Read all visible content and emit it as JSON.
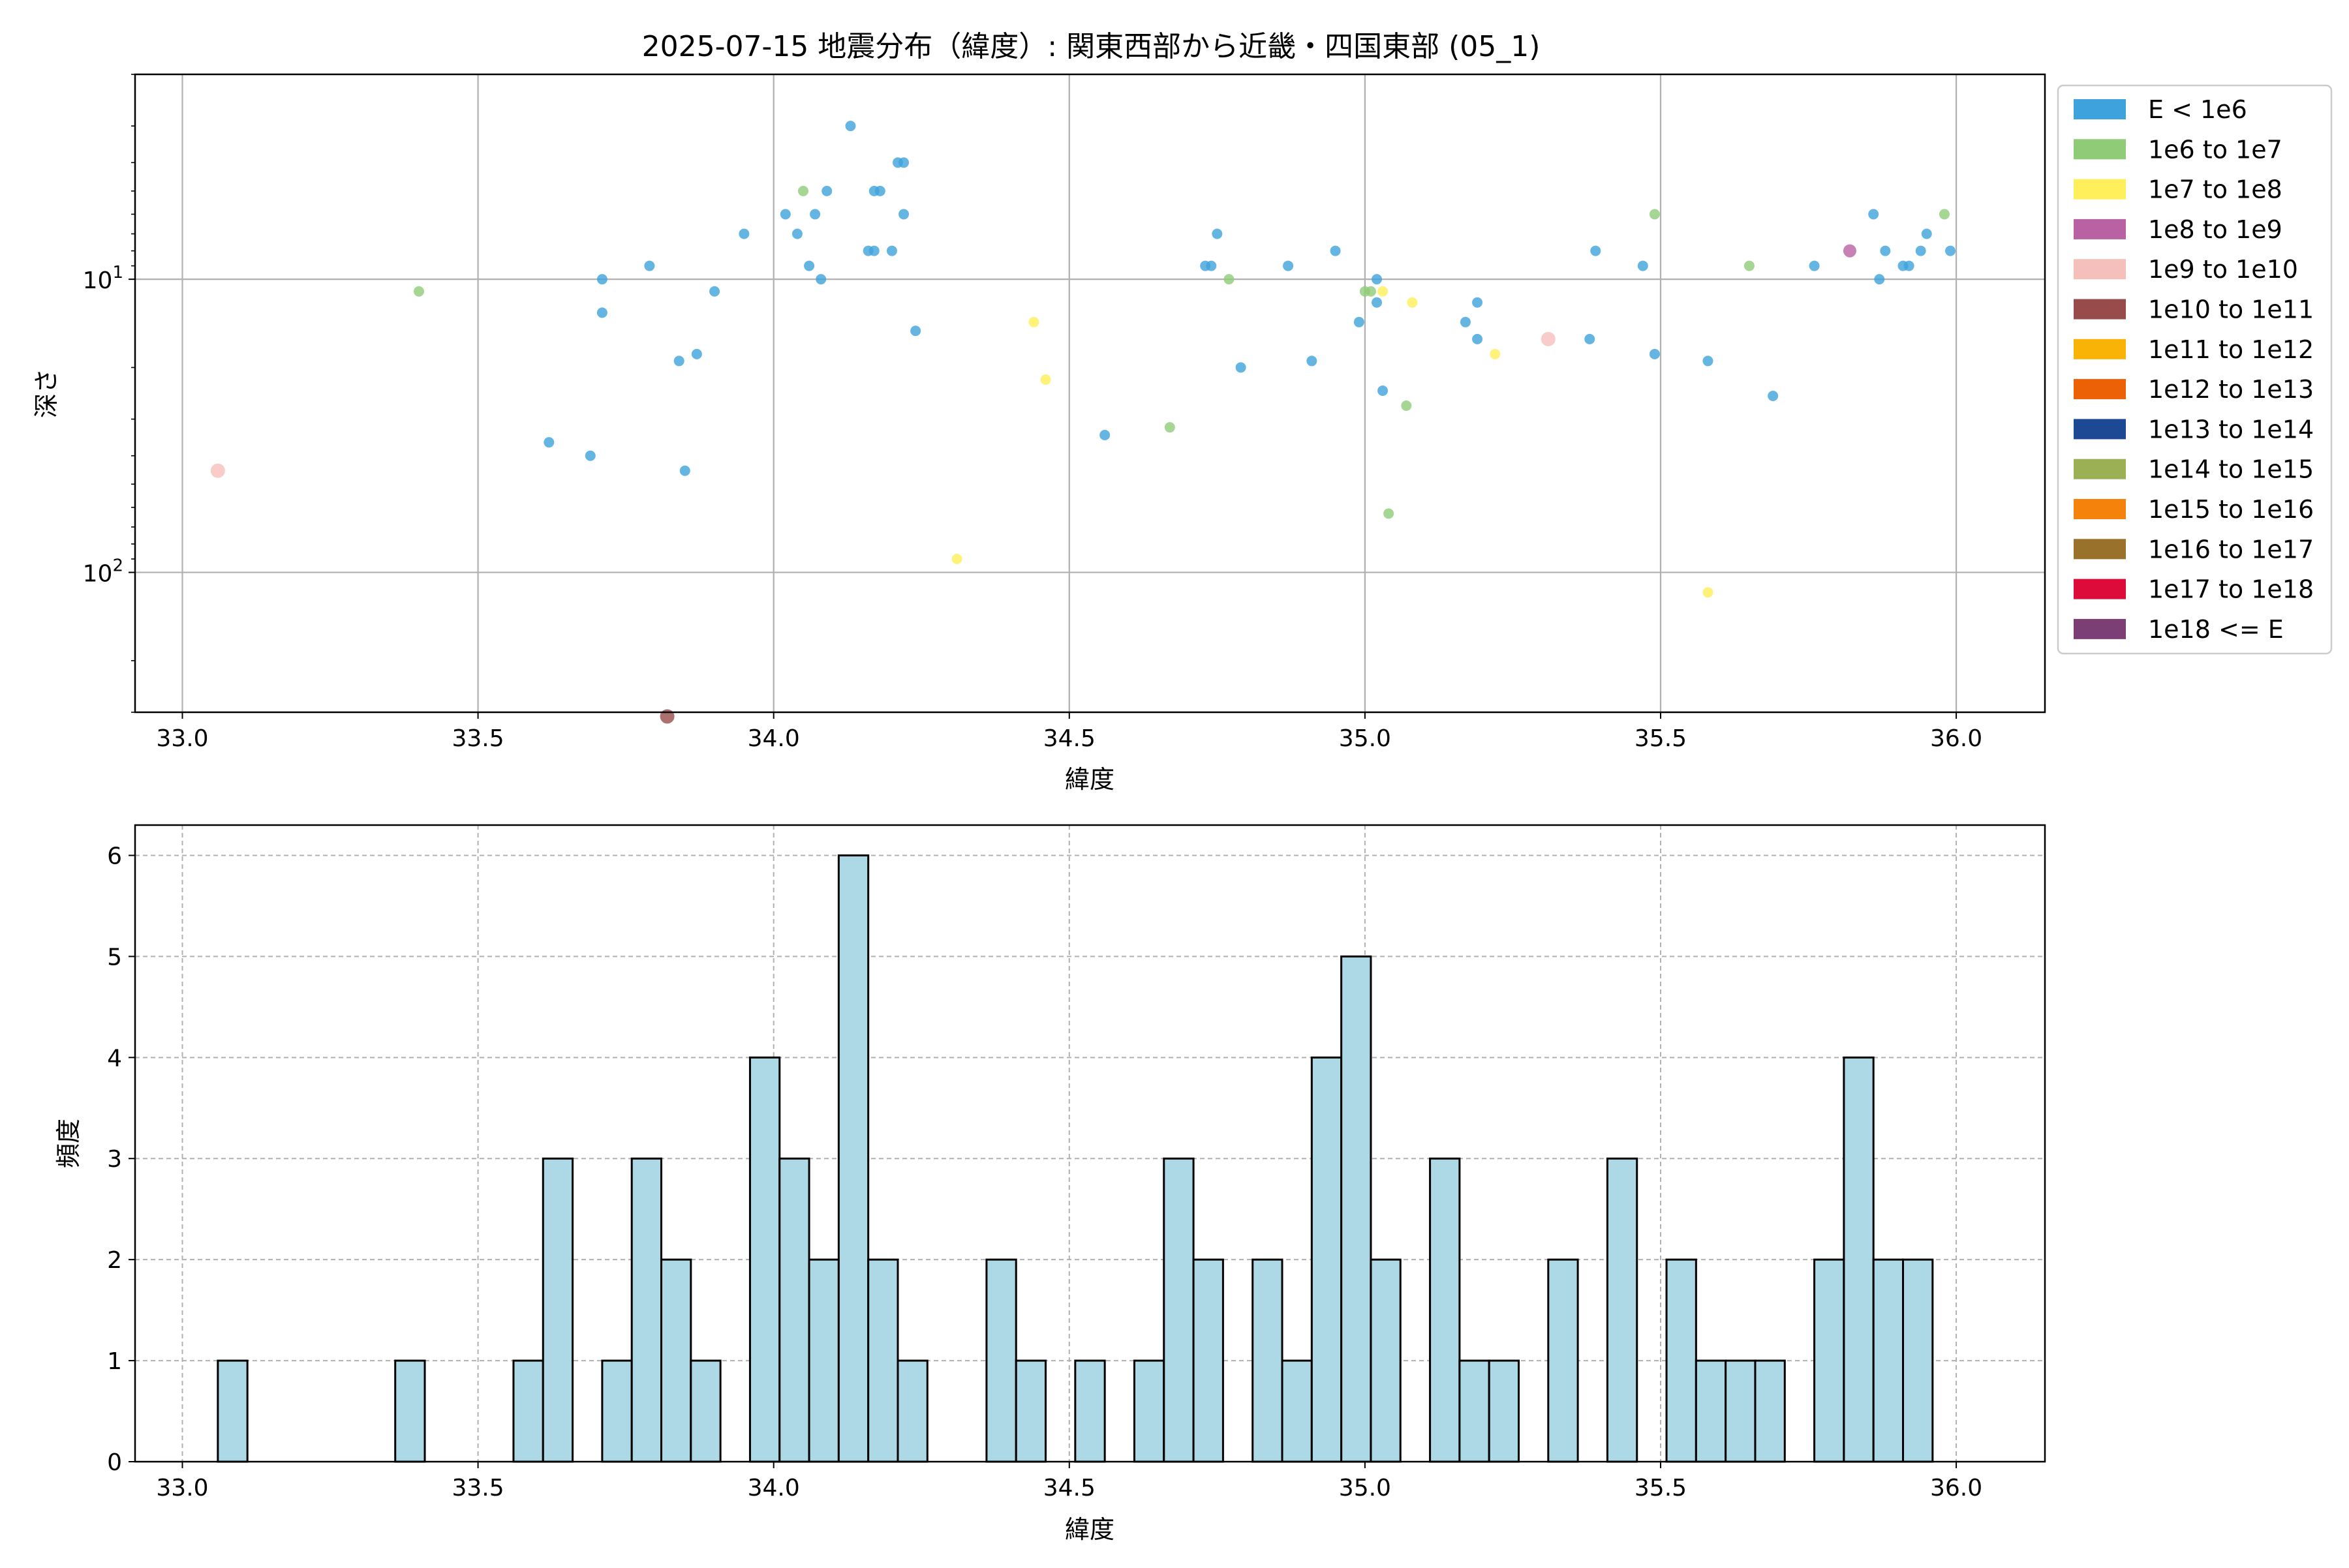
{
  "figure": {
    "title": "2025-07-15 地震分布（緯度）: 関東西部から近畿・四国東部 (05_1)"
  },
  "chart_data": [
    {
      "type": "scatter",
      "xlabel": "緯度",
      "ylabel": "深さ",
      "xlim": [
        32.92,
        36.15
      ],
      "ylim_log_inverted": [
        2.0,
        300
      ],
      "yscale": "log-inverted",
      "grid": true,
      "x_ticks": [
        "33.0",
        "33.5",
        "34.0",
        "34.5",
        "35.0",
        "35.5",
        "36.0"
      ],
      "x_tick_values": [
        33.0,
        33.5,
        34.0,
        34.5,
        35.0,
        35.5,
        36.0
      ],
      "y_ticks": [
        {
          "value": 10,
          "base": "10",
          "exp": "1"
        },
        {
          "value": 100,
          "base": "10",
          "exp": "2"
        }
      ],
      "legend_placement": "outside-right",
      "legend": [
        {
          "label": "E < 1e6",
          "color": "#3ea3dc"
        },
        {
          "label": "1e6 to 1e7",
          "color": "#90cc78"
        },
        {
          "label": "1e7 to 1e8",
          "color": "#ffef5a"
        },
        {
          "label": "1e8 to 1e9",
          "color": "#b962a3"
        },
        {
          "label": "1e9 to 1e10",
          "color": "#f5bfbc"
        },
        {
          "label": "1e10 to 1e11",
          "color": "#974c4b"
        },
        {
          "label": "1e11 to 1e12",
          "color": "#f8b306"
        },
        {
          "label": "1e12 to 1e13",
          "color": "#ec6006"
        },
        {
          "label": "1e13 to 1e14",
          "color": "#1d4893"
        },
        {
          "label": "1e14 to 1e15",
          "color": "#9baf54"
        },
        {
          "label": "1e15 to 1e16",
          "color": "#f5820b"
        },
        {
          "label": "1e16 to 1e17",
          "color": "#9a712b"
        },
        {
          "label": "1e17 to 1e18",
          "color": "#dc0b3a"
        },
        {
          "label": "1e18 <= E",
          "color": "#7b3f75"
        }
      ],
      "points": [
        {
          "x": 33.06,
          "y": 45,
          "c": 4
        },
        {
          "x": 33.4,
          "y": 11,
          "c": 1
        },
        {
          "x": 33.62,
          "y": 36,
          "c": 0
        },
        {
          "x": 33.69,
          "y": 40,
          "c": 0
        },
        {
          "x": 33.71,
          "y": 10,
          "c": 0
        },
        {
          "x": 33.71,
          "y": 13,
          "c": 0
        },
        {
          "x": 33.79,
          "y": 9,
          "c": 0
        },
        {
          "x": 33.82,
          "y": 310,
          "c": 5
        },
        {
          "x": 33.84,
          "y": 19,
          "c": 0
        },
        {
          "x": 33.85,
          "y": 45,
          "c": 0
        },
        {
          "x": 33.87,
          "y": 18,
          "c": 0
        },
        {
          "x": 33.9,
          "y": 11,
          "c": 0
        },
        {
          "x": 33.95,
          "y": 7,
          "c": 0
        },
        {
          "x": 34.02,
          "y": 6,
          "c": 0
        },
        {
          "x": 34.04,
          "y": 7,
          "c": 0
        },
        {
          "x": 34.05,
          "y": 5,
          "c": 1
        },
        {
          "x": 34.06,
          "y": 9,
          "c": 0
        },
        {
          "x": 34.07,
          "y": 6,
          "c": 0
        },
        {
          "x": 34.08,
          "y": 10,
          "c": 0
        },
        {
          "x": 34.09,
          "y": 5,
          "c": 0
        },
        {
          "x": 34.13,
          "y": 3,
          "c": 0
        },
        {
          "x": 34.16,
          "y": 8,
          "c": 0
        },
        {
          "x": 34.17,
          "y": 8,
          "c": 0
        },
        {
          "x": 34.17,
          "y": 5,
          "c": 0
        },
        {
          "x": 34.18,
          "y": 5,
          "c": 0
        },
        {
          "x": 34.2,
          "y": 8,
          "c": 0
        },
        {
          "x": 34.21,
          "y": 4,
          "c": 0
        },
        {
          "x": 34.22,
          "y": 4,
          "c": 0
        },
        {
          "x": 34.22,
          "y": 6,
          "c": 0
        },
        {
          "x": 34.24,
          "y": 15,
          "c": 0
        },
        {
          "x": 34.31,
          "y": 90,
          "c": 2
        },
        {
          "x": 34.44,
          "y": 14,
          "c": 2
        },
        {
          "x": 34.46,
          "y": 22,
          "c": 2
        },
        {
          "x": 34.56,
          "y": 34,
          "c": 0
        },
        {
          "x": 34.67,
          "y": 32,
          "c": 1
        },
        {
          "x": 34.73,
          "y": 9,
          "c": 0
        },
        {
          "x": 34.74,
          "y": 9,
          "c": 0
        },
        {
          "x": 34.75,
          "y": 7,
          "c": 0
        },
        {
          "x": 34.77,
          "y": 10,
          "c": 1
        },
        {
          "x": 34.79,
          "y": 20,
          "c": 0
        },
        {
          "x": 34.87,
          "y": 9,
          "c": 0
        },
        {
          "x": 34.91,
          "y": 19,
          "c": 0
        },
        {
          "x": 34.95,
          "y": 8,
          "c": 0
        },
        {
          "x": 34.99,
          "y": 14,
          "c": 0
        },
        {
          "x": 35.0,
          "y": 11,
          "c": 1
        },
        {
          "x": 35.01,
          "y": 11,
          "c": 1
        },
        {
          "x": 35.02,
          "y": 10,
          "c": 0
        },
        {
          "x": 35.02,
          "y": 12,
          "c": 0
        },
        {
          "x": 35.03,
          "y": 11,
          "c": 2
        },
        {
          "x": 35.03,
          "y": 24,
          "c": 0
        },
        {
          "x": 35.04,
          "y": 63,
          "c": 1
        },
        {
          "x": 35.07,
          "y": 27,
          "c": 1
        },
        {
          "x": 35.08,
          "y": 12,
          "c": 2
        },
        {
          "x": 35.17,
          "y": 14,
          "c": 0
        },
        {
          "x": 35.19,
          "y": 16,
          "c": 0
        },
        {
          "x": 35.19,
          "y": 12,
          "c": 0
        },
        {
          "x": 35.22,
          "y": 18,
          "c": 2
        },
        {
          "x": 35.31,
          "y": 16,
          "c": 4
        },
        {
          "x": 35.38,
          "y": 16,
          "c": 0
        },
        {
          "x": 35.39,
          "y": 8,
          "c": 0
        },
        {
          "x": 35.47,
          "y": 9,
          "c": 0
        },
        {
          "x": 35.49,
          "y": 6,
          "c": 1
        },
        {
          "x": 35.49,
          "y": 18,
          "c": 0
        },
        {
          "x": 35.58,
          "y": 19,
          "c": 0
        },
        {
          "x": 35.58,
          "y": 117,
          "c": 2
        },
        {
          "x": 35.65,
          "y": 9,
          "c": 1
        },
        {
          "x": 35.69,
          "y": 25,
          "c": 0
        },
        {
          "x": 35.76,
          "y": 9,
          "c": 0
        },
        {
          "x": 35.82,
          "y": 8,
          "c": 3
        },
        {
          "x": 35.86,
          "y": 6,
          "c": 0
        },
        {
          "x": 35.87,
          "y": 10,
          "c": 0
        },
        {
          "x": 35.88,
          "y": 8,
          "c": 0
        },
        {
          "x": 35.91,
          "y": 9,
          "c": 0
        },
        {
          "x": 35.92,
          "y": 9,
          "c": 0
        },
        {
          "x": 35.94,
          "y": 8,
          "c": 0
        },
        {
          "x": 35.95,
          "y": 7,
          "c": 0
        },
        {
          "x": 35.98,
          "y": 6,
          "c": 1
        },
        {
          "x": 35.99,
          "y": 8,
          "c": 0
        }
      ]
    },
    {
      "type": "bar",
      "subtype": "histogram",
      "xlabel": "緯度",
      "ylabel": "頻度",
      "xlim": [
        32.92,
        36.15
      ],
      "ylim": [
        0,
        6.3
      ],
      "grid": true,
      "bar_color": "#add8e6",
      "x_ticks": [
        "33.0",
        "33.5",
        "34.0",
        "34.5",
        "35.0",
        "35.5",
        "36.0"
      ],
      "x_tick_values": [
        33.0,
        33.5,
        34.0,
        34.5,
        35.0,
        35.5,
        36.0
      ],
      "y_ticks": [
        "0",
        "1",
        "2",
        "3",
        "4",
        "5",
        "6"
      ],
      "y_tick_values": [
        0,
        1,
        2,
        3,
        4,
        5,
        6
      ],
      "bin_start": 33.06,
      "bin_width": 0.05,
      "counts": [
        1,
        0,
        0,
        0,
        0,
        0,
        1,
        0,
        0,
        0,
        1,
        3,
        0,
        1,
        3,
        2,
        1,
        0,
        4,
        3,
        2,
        6,
        2,
        1,
        0,
        0,
        2,
        1,
        0,
        1,
        0,
        1,
        3,
        2,
        0,
        2,
        1,
        4,
        5,
        2,
        0,
        3,
        1,
        1,
        0,
        2,
        0,
        3,
        0,
        2,
        1,
        1,
        1,
        0,
        2,
        4,
        2,
        2
      ]
    }
  ]
}
